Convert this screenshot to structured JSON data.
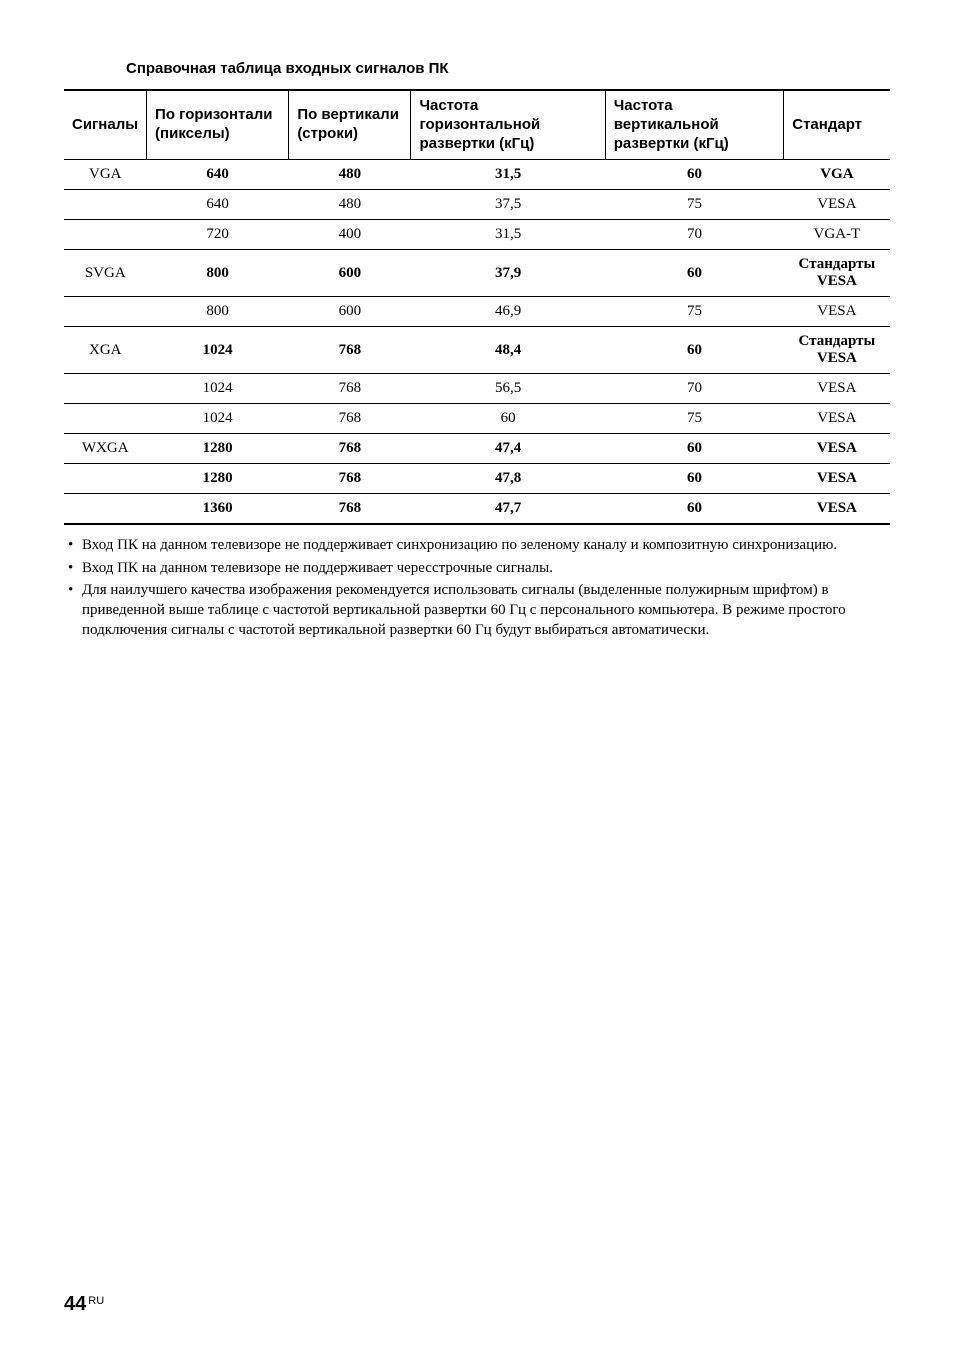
{
  "title": "Справочная таблица входных сигналов ПК",
  "table": {
    "headers": {
      "signals": "Сигналы",
      "horizontal": "По горизонтали (пикселы)",
      "vertical": "По вертикали (строки)",
      "hfreq": "Частота горизонтальной развертки (кГц)",
      "vfreq": "Частота вертикальной развертки (кГц)",
      "standard": "Стандарт"
    },
    "rows": [
      {
        "sep": true,
        "bold": true,
        "c0": "VGA",
        "c1": "640",
        "c2": "480",
        "c3": "31,5",
        "c4": "60",
        "c5": "VGA"
      },
      {
        "sep": true,
        "bold": false,
        "c0": "",
        "c1": "640",
        "c2": "480",
        "c3": "37,5",
        "c4": "75",
        "c5": "VESA"
      },
      {
        "sep": true,
        "bold": false,
        "c0": "",
        "c1": "720",
        "c2": "400",
        "c3": "31,5",
        "c4": "70",
        "c5": "VGA-T"
      },
      {
        "sep": true,
        "bold": true,
        "c0": "SVGA",
        "c1": "800",
        "c2": "600",
        "c3": "37,9",
        "c4": "60",
        "c5": "Стандарты VESA"
      },
      {
        "sep": true,
        "bold": false,
        "c0": "",
        "c1": "800",
        "c2": "600",
        "c3": "46,9",
        "c4": "75",
        "c5": "VESA"
      },
      {
        "sep": true,
        "bold": true,
        "c0": "XGA",
        "c1": "1024",
        "c2": "768",
        "c3": "48,4",
        "c4": "60",
        "c5": "Стандарты VESA"
      },
      {
        "sep": true,
        "bold": false,
        "c0": "",
        "c1": "1024",
        "c2": "768",
        "c3": "56,5",
        "c4": "70",
        "c5": "VESA"
      },
      {
        "sep": true,
        "bold": false,
        "c0": "",
        "c1": "1024",
        "c2": "768",
        "c3": "60",
        "c4": "75",
        "c5": "VESA"
      },
      {
        "sep": true,
        "bold": true,
        "c0": "WXGA",
        "c1": "1280",
        "c2": "768",
        "c3": "47,4",
        "c4": "60",
        "c5": "VESA"
      },
      {
        "sep": true,
        "bold": true,
        "c0": "",
        "c1": "1280",
        "c2": "768",
        "c3": "47,8",
        "c4": "60",
        "c5": "VESA"
      },
      {
        "sep": true,
        "bold": true,
        "c0": "",
        "c1": "1360",
        "c2": "768",
        "c3": "47,7",
        "c4": "60",
        "c5": "VESA",
        "last": true
      }
    ]
  },
  "notes": [
    "Вход ПК на данном телевизоре не поддерживает синхронизацию по зеленому каналу и композитную синхронизацию.",
    "Вход ПК на данном телевизоре не поддерживает чересстрочные сигналы.",
    "Для наилучшего качества изображения рекомендуется использовать сигналы (выделенные полужирным шрифтом) в приведенной выше таблице с частотой вертикальной развертки 60 Гц с персонального компьютера. В режиме простого подключения сигналы с частотой вертикальной развертки 60 Гц будут выбираться автоматически."
  ],
  "footer": {
    "page": "44",
    "lang": "RU"
  }
}
